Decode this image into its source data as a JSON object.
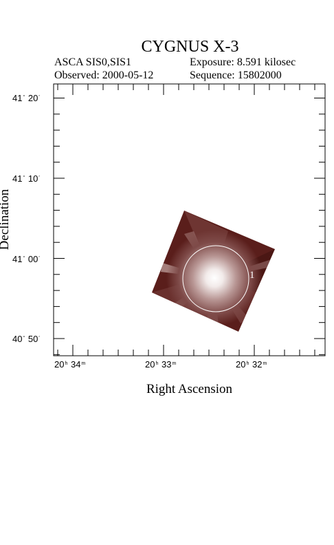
{
  "title": "CYGNUS X-3",
  "header": {
    "instrument": "ASCA SIS0,SIS1",
    "exposure": "Exposure: 8.591 kilosec",
    "observed": "Observed: 2000-05-12",
    "sequence": "Sequence: 15802000"
  },
  "axes": {
    "ylabel": "Declination",
    "xlabel": "Right Ascension",
    "dec_ticks": [
      {
        "deg": "41",
        "min": "20"
      },
      {
        "deg": "41",
        "min": "10"
      },
      {
        "deg": "41",
        "min": "00"
      },
      {
        "deg": "40",
        "min": "50"
      }
    ],
    "ra_ticks": [
      {
        "h": "20",
        "m": "34"
      },
      {
        "h": "20",
        "m": "33"
      },
      {
        "h": "20",
        "m": "32"
      }
    ]
  },
  "source_region": {
    "label": "1"
  },
  "colors": {
    "image_dark": "#4a1512",
    "image_mid": "#7e4a48",
    "image_bright": "#ffffff"
  }
}
